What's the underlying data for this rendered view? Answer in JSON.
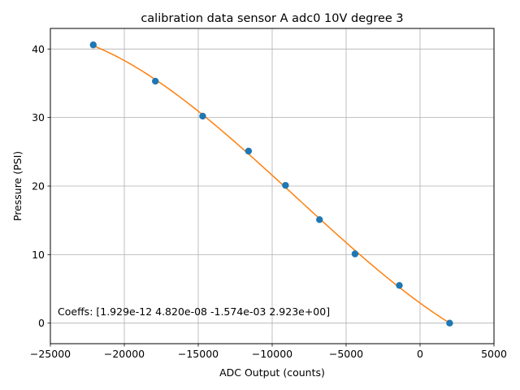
{
  "chart_data": {
    "type": "scatter",
    "title": "calibration data sensor A adc0 10V degree 3",
    "xlabel": "ADC Output (counts)",
    "ylabel": "Pressure (PSI)",
    "xlim": [
      -25000,
      5000
    ],
    "ylim": [
      -3,
      43
    ],
    "xticks": [
      -25000,
      -20000,
      -15000,
      -10000,
      -5000,
      0,
      5000
    ],
    "xtick_labels": [
      "−25000",
      "−20000",
      "−15000",
      "−10000",
      "−5000",
      "0",
      "5000"
    ],
    "yticks": [
      0,
      10,
      20,
      30,
      40
    ],
    "ytick_labels": [
      "0",
      "10",
      "20",
      "30",
      "40"
    ],
    "grid": true,
    "series": [
      {
        "kind": "scatter",
        "color": "#1f77b4",
        "x": [
          -22100,
          -17900,
          -14700,
          -11600,
          -9100,
          -6800,
          -4400,
          -1400,
          2000
        ],
        "y": [
          40.6,
          35.3,
          30.2,
          25.1,
          20.1,
          15.1,
          10.1,
          5.5,
          0.0
        ]
      },
      {
        "kind": "line",
        "color": "#ff7f0e",
        "fit": "polynomial",
        "degree": 3,
        "x_range": [
          -22100,
          2000
        ]
      }
    ],
    "annotation": "Coeffs: [1.929e-12 4.820e-08 -1.574e-03 2.923e+00]"
  }
}
